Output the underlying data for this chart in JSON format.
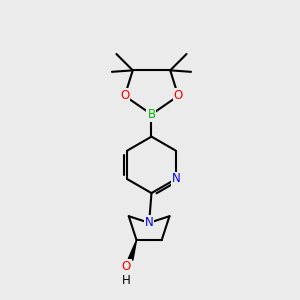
{
  "bg_color": "#ebebeb",
  "bond_color": "#000000",
  "bond_width": 1.5,
  "atom_colors": {
    "B": "#00bb00",
    "O": "#ff0000",
    "N": "#0000ee",
    "C": "#000000",
    "H": "#000000"
  },
  "font_size": 8.5,
  "fig_size": [
    3.0,
    3.0
  ],
  "dpi": 100,
  "xlim": [
    0,
    10
  ],
  "ylim": [
    0,
    10
  ]
}
